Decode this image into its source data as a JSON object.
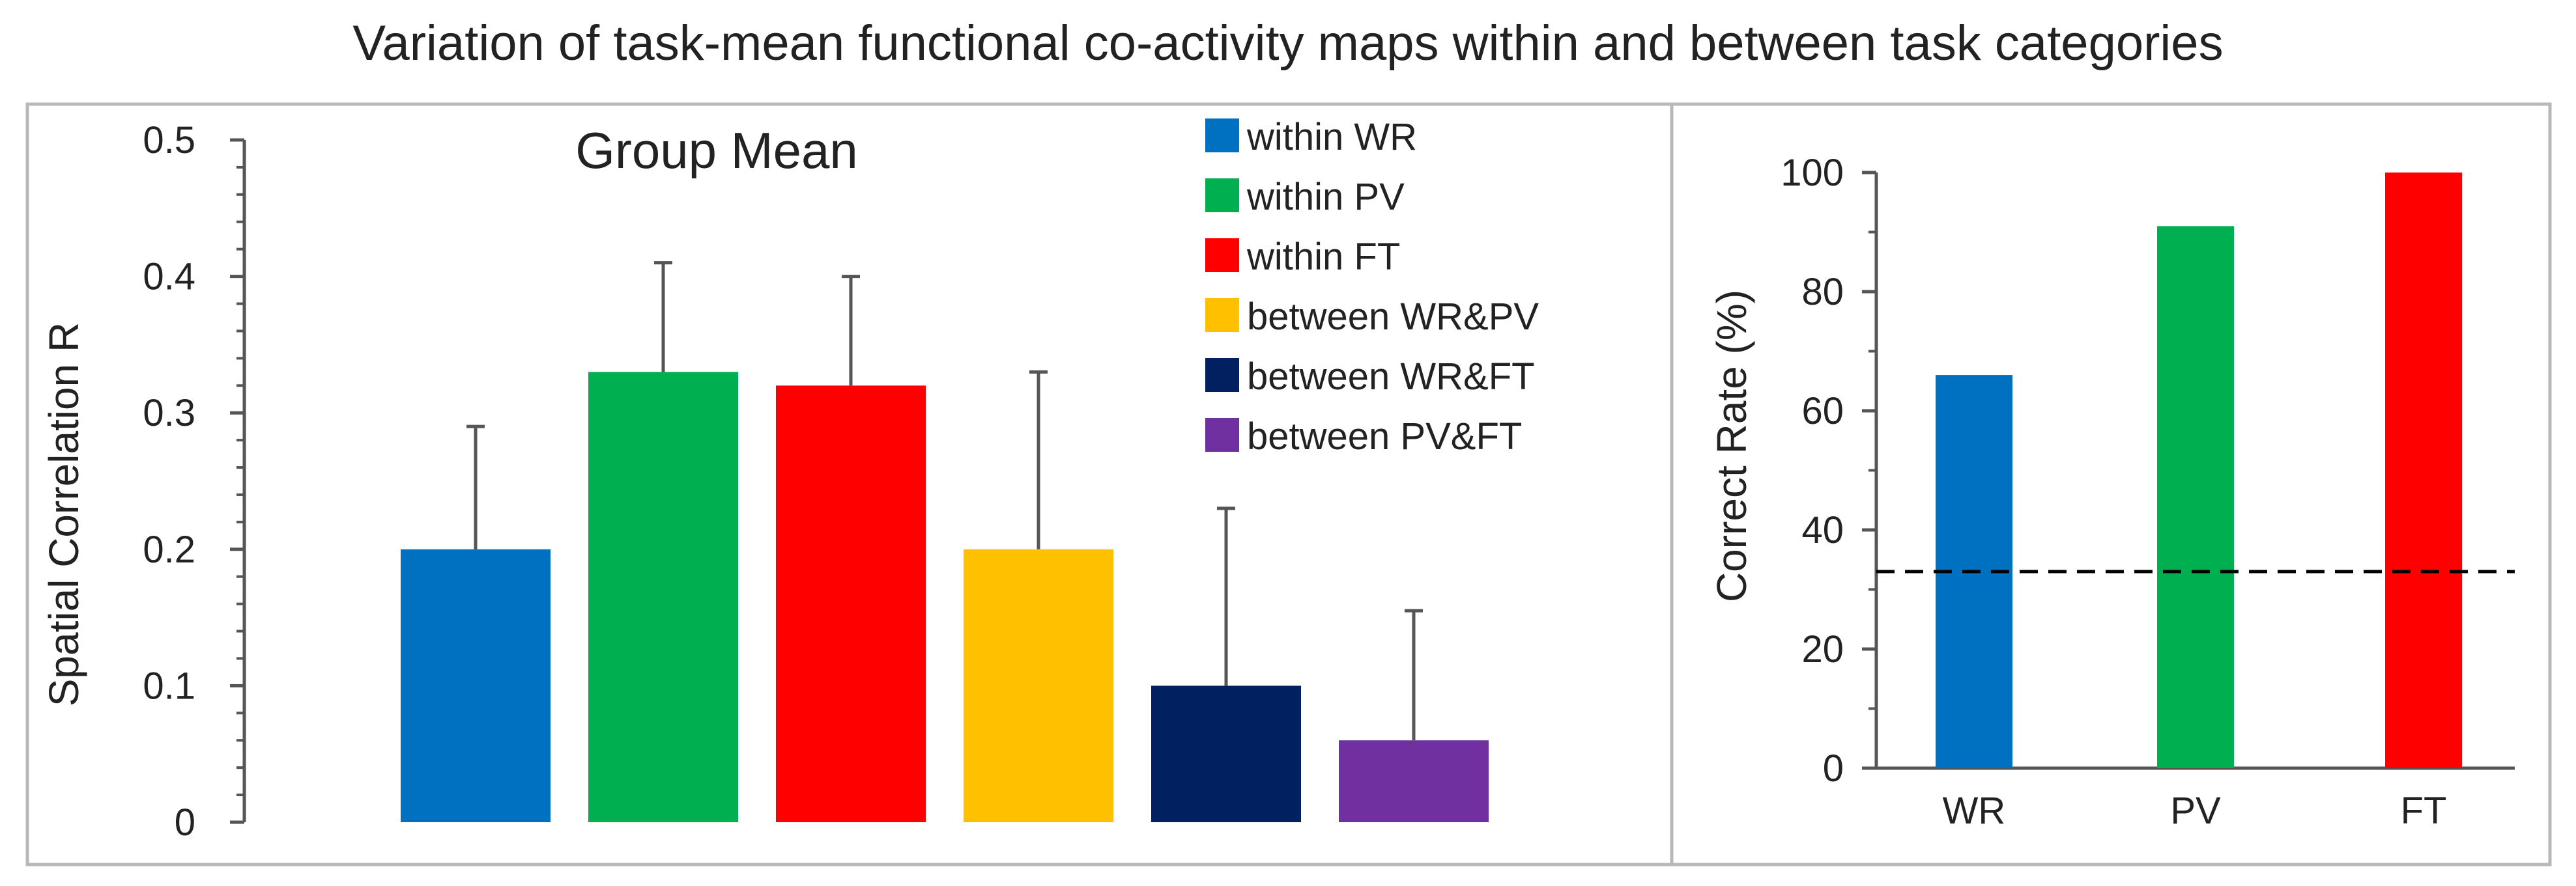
{
  "title": "Variation of task-mean functional co-activity maps within and between task categories",
  "chart_data": [
    {
      "type": "bar",
      "title": "Group Mean",
      "xlabel": "",
      "ylabel": "Spatial Correlation R",
      "ylim": [
        0,
        0.5
      ],
      "yticks": [
        "0",
        "0.1",
        "0.2",
        "0.3",
        "0.4",
        "0.5"
      ],
      "categories": [
        "within WR",
        "within PV",
        "within FT",
        "between WR&PV",
        "between WR&FT",
        "between PV&FT"
      ],
      "values": [
        0.2,
        0.33,
        0.32,
        0.2,
        0.1,
        0.06
      ],
      "error_upper": [
        0.29,
        0.41,
        0.4,
        0.33,
        0.23,
        0.155
      ],
      "colors": [
        "#0070C0",
        "#00B050",
        "#FF0000",
        "#FFC000",
        "#002060",
        "#7030A0"
      ],
      "legend": {
        "placement": "top-right"
      },
      "grid": false
    },
    {
      "type": "bar",
      "title": "",
      "xlabel": "",
      "ylabel": "Correct Rate (%)",
      "ylim": [
        0,
        100
      ],
      "yticks": [
        "0",
        "20",
        "40",
        "60",
        "80",
        "100"
      ],
      "categories": [
        "WR",
        "PV",
        "FT"
      ],
      "values": [
        66,
        91,
        100
      ],
      "colors": [
        "#0070C0",
        "#00B050",
        "#FF0000"
      ],
      "reference_line": {
        "value": 33,
        "style": "dashed"
      },
      "grid": false
    }
  ]
}
